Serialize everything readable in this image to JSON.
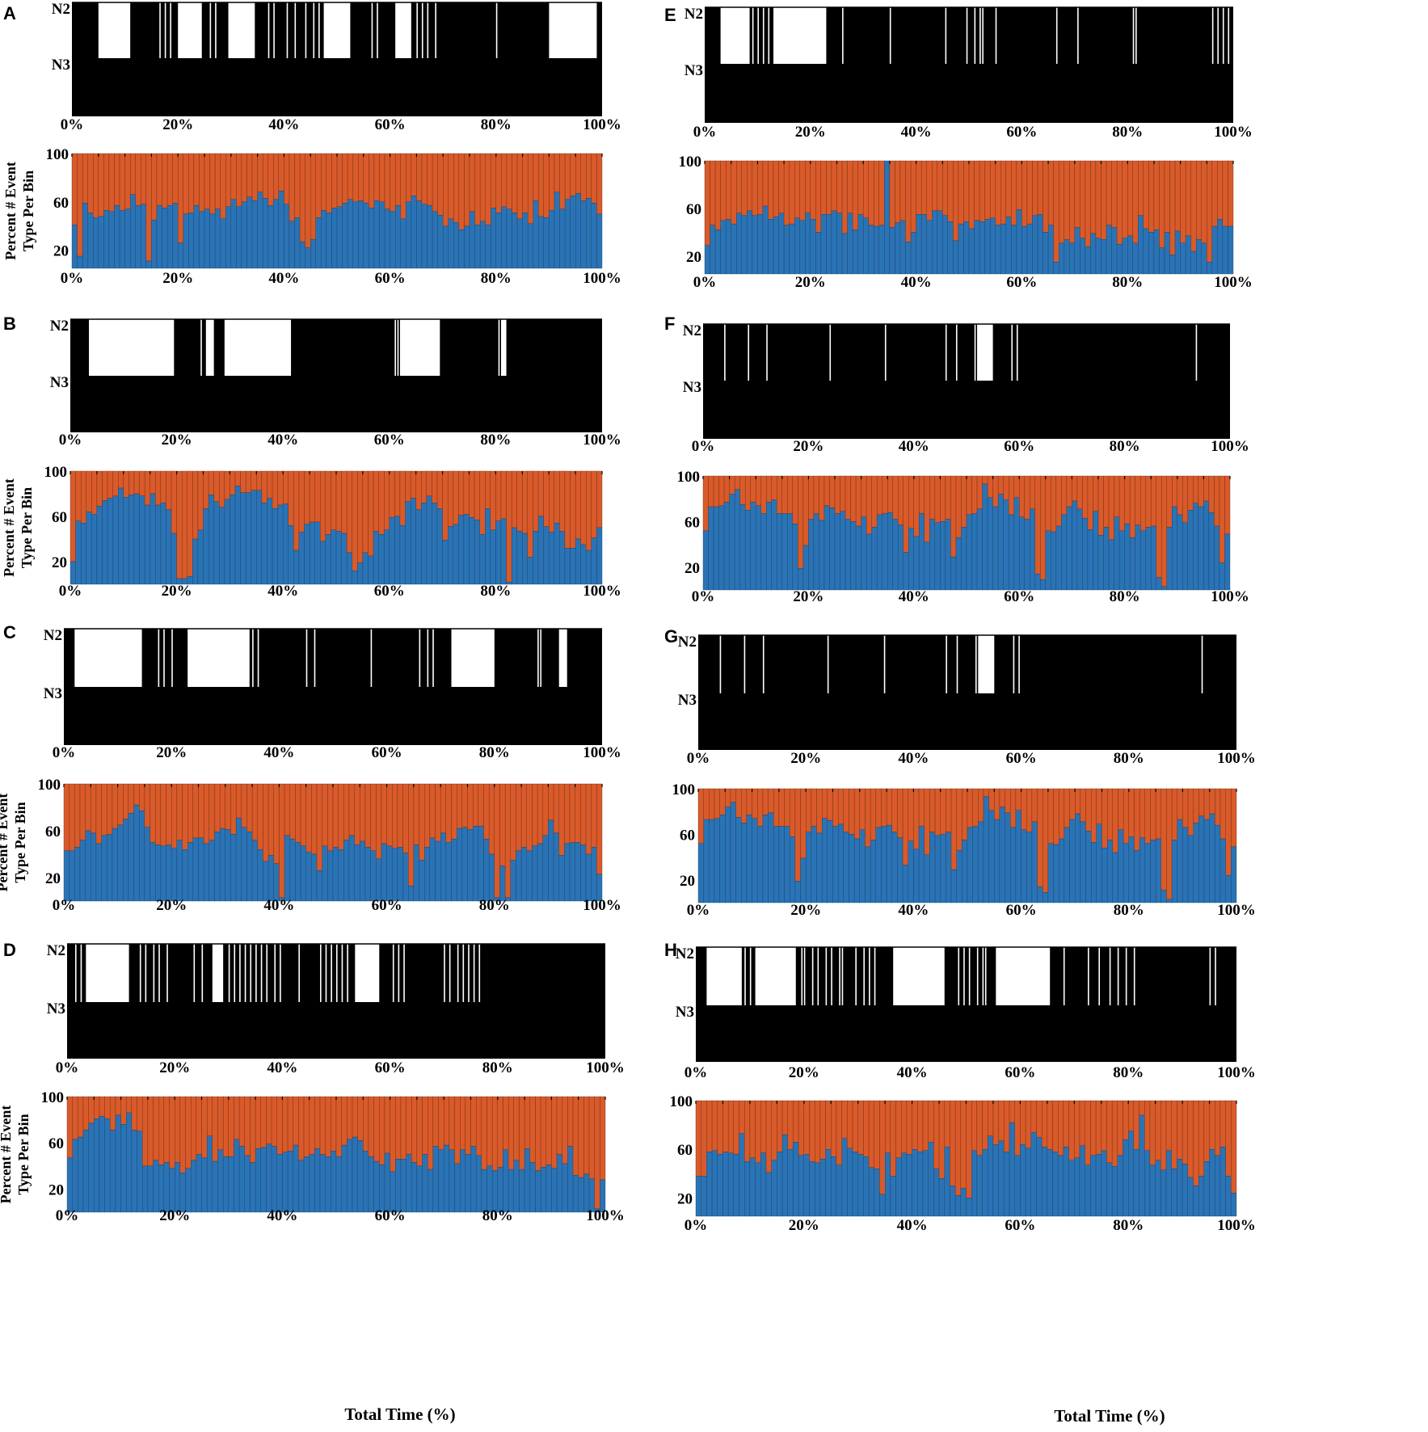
{
  "figure": {
    "x_axis_title": "Total Time (%)",
    "stage_labels": [
      "N2",
      "N3"
    ],
    "ratio_y_label": [
      "Percent # Event",
      "Type Per Bin"
    ],
    "x_tick_labels": [
      "0%",
      "20%",
      "40%",
      "60%",
      "80%",
      "100%"
    ],
    "ratio_tick_labels": [
      "20",
      "60",
      "100"
    ],
    "colors": {
      "hypnogram": "#000000",
      "lower_series": "#2a73b5",
      "upper_series": "#d95a2a"
    }
  },
  "chart_data": [
    {
      "panel": "A",
      "type": "hypnogram",
      "xlim": [
        0,
        100
      ],
      "levels": [
        "N2",
        "N3"
      ],
      "n3_intervals": [
        [
          5,
          11
        ],
        [
          20,
          24.5
        ],
        [
          29.5,
          34.5
        ],
        [
          47.5,
          52.5
        ],
        [
          61,
          64
        ],
        [
          90,
          99
        ]
      ],
      "n3_lines": [
        16.5,
        17.5,
        18.5,
        26,
        27,
        37,
        38,
        40.5,
        42,
        44,
        45.5,
        46.5,
        56.5,
        57.5,
        65,
        66,
        67,
        68.5,
        80
      ],
      "ratio": {
        "type": "bar",
        "stacked": true,
        "xlim": [
          0,
          100
        ],
        "ylim": [
          5,
          100
        ],
        "ticks": [
          20,
          60,
          100
        ],
        "lower_series_values": [
          41,
          15,
          59,
          51,
          47,
          48,
          53,
          52,
          57,
          53,
          54,
          66,
          57,
          58,
          11,
          45,
          57,
          55,
          57,
          59,
          26,
          50,
          51,
          57,
          52,
          54,
          50,
          54,
          46,
          56,
          62,
          56,
          60,
          64,
          61,
          68,
          63,
          57,
          62,
          69,
          58,
          44,
          47,
          27,
          22,
          29,
          47,
          53,
          51,
          55,
          56,
          59,
          62,
          60,
          61,
          59,
          55,
          61,
          60,
          54,
          52,
          57,
          46,
          60,
          65,
          61,
          58,
          57,
          52,
          49,
          40,
          46,
          43,
          37,
          40,
          52,
          41,
          44,
          41,
          55,
          51,
          56,
          54,
          51,
          46,
          51,
          42,
          61,
          48,
          47,
          53,
          68,
          54,
          62,
          65,
          67,
          61,
          63,
          59,
          50
        ]
      }
    },
    {
      "panel": "B",
      "type": "hypnogram",
      "xlim": [
        0,
        100
      ],
      "levels": [
        "N2",
        "N3"
      ],
      "n3_intervals": [
        [
          3.5,
          19.5
        ],
        [
          25.5,
          27
        ],
        [
          29,
          41.5
        ],
        [
          62,
          69.5
        ],
        [
          81,
          82
        ]
      ],
      "n3_lines": [
        24.5,
        61,
        61.5,
        80.5
      ],
      "ratio": {
        "type": "bar",
        "stacked": true,
        "xlim": [
          0,
          100
        ],
        "ylim": [
          0,
          100
        ],
        "ticks": [
          20,
          60,
          100
        ],
        "lower_series_values": [
          20,
          56,
          54,
          64,
          62,
          69,
          74,
          76,
          78,
          85,
          77,
          79,
          80,
          78,
          70,
          80,
          70,
          72,
          66,
          45,
          5,
          5,
          7,
          40,
          48,
          67,
          79,
          73,
          68,
          75,
          79,
          87,
          81,
          81,
          83,
          83,
          72,
          76,
          67,
          70,
          71,
          52,
          30,
          46,
          53,
          55,
          55,
          38,
          44,
          48,
          47,
          45,
          28,
          12,
          19,
          28,
          25,
          47,
          44,
          48,
          59,
          60,
          52,
          73,
          76,
          66,
          72,
          78,
          72,
          67,
          39,
          51,
          53,
          61,
          62,
          59,
          57,
          44,
          67,
          48,
          56,
          58,
          2,
          50,
          47,
          45,
          24,
          47,
          60,
          51,
          46,
          54,
          47,
          32,
          32,
          40,
          35,
          30,
          41,
          50
        ]
      }
    },
    {
      "panel": "C",
      "type": "hypnogram",
      "xlim": [
        0,
        100
      ],
      "levels": [
        "N2",
        "N3"
      ],
      "n3_intervals": [
        [
          2,
          14.5
        ],
        [
          23,
          34.5
        ],
        [
          72,
          80
        ],
        [
          92,
          93.5
        ]
      ],
      "n3_lines": [
        17.5,
        18.5,
        20,
        35,
        36,
        45,
        46.5,
        57,
        66,
        67.5,
        68.5,
        88,
        88.5
      ],
      "ratio": {
        "type": "bar",
        "stacked": true,
        "xlim": [
          0,
          100
        ],
        "ylim": [
          0,
          100
        ],
        "ticks": [
          20,
          60,
          100
        ],
        "lower_series_values": [
          43,
          43,
          46,
          52,
          60,
          58,
          49,
          56,
          57,
          62,
          65,
          70,
          75,
          82,
          77,
          63,
          50,
          48,
          47,
          48,
          45,
          52,
          44,
          50,
          54,
          54,
          49,
          52,
          59,
          62,
          61,
          57,
          71,
          63,
          59,
          52,
          44,
          34,
          39,
          32,
          3,
          56,
          53,
          50,
          47,
          42,
          40,
          26,
          47,
          43,
          46,
          44,
          52,
          56,
          48,
          51,
          46,
          43,
          36,
          49,
          47,
          45,
          46,
          41,
          13,
          48,
          35,
          46,
          54,
          51,
          58,
          50,
          53,
          62,
          63,
          61,
          64,
          64,
          53,
          40,
          3,
          30,
          3,
          35,
          43,
          46,
          43,
          47,
          49,
          56,
          69,
          58,
          39,
          49,
          50,
          50,
          48,
          40,
          46,
          23
        ]
      }
    },
    {
      "panel": "D",
      "type": "hypnogram",
      "xlim": [
        0,
        100
      ],
      "levels": [
        "N2",
        "N3"
      ],
      "n3_intervals": [
        [
          3.5,
          11.5
        ],
        [
          27,
          29
        ],
        [
          53.5,
          58
        ]
      ],
      "n3_lines": [
        1.5,
        2.5,
        13.5,
        14.5,
        16,
        17,
        18.5,
        23.5,
        25,
        30,
        31,
        32,
        33,
        34,
        35,
        36,
        37,
        38.5,
        39.5,
        43,
        47,
        48,
        49,
        50,
        51,
        52,
        60.5,
        61.5,
        62.5,
        70,
        71,
        72.5,
        73.5,
        74.5,
        75.5,
        76.5
      ],
      "ratio": {
        "type": "bar",
        "stacked": true,
        "xlim": [
          0,
          100
        ],
        "ylim": [
          0,
          100
        ],
        "ticks": [
          20,
          60,
          100
        ],
        "lower_series_values": [
          47,
          63,
          65,
          71,
          77,
          81,
          83,
          81,
          71,
          84,
          76,
          86,
          71,
          70,
          40,
          40,
          45,
          41,
          43,
          38,
          43,
          34,
          38,
          45,
          50,
          47,
          66,
          44,
          54,
          48,
          48,
          63,
          57,
          49,
          43,
          55,
          56,
          59,
          57,
          50,
          52,
          53,
          58,
          45,
          48,
          50,
          55,
          50,
          48,
          53,
          48,
          58,
          63,
          65,
          62,
          53,
          48,
          44,
          41,
          51,
          35,
          46,
          46,
          50,
          43,
          40,
          50,
          37,
          57,
          54,
          58,
          54,
          42,
          54,
          50,
          57,
          49,
          37,
          40,
          36,
          39,
          54,
          37,
          45,
          37,
          55,
          43,
          36,
          39,
          41,
          38,
          50,
          42,
          57,
          32,
          30,
          33,
          29,
          3,
          28
        ]
      }
    },
    {
      "panel": "E",
      "type": "hypnogram",
      "xlim": [
        0,
        100
      ],
      "levels": [
        "N2",
        "N3"
      ],
      "n3_intervals": [
        [
          3,
          8.5
        ],
        [
          13,
          23
        ]
      ],
      "n3_lines": [
        9,
        10,
        11,
        12,
        26,
        35,
        45.5,
        49.5,
        51,
        52,
        52.5,
        55,
        66.5,
        70.5,
        81,
        81.5,
        96,
        97,
        98,
        99
      ],
      "ratio": {
        "type": "bar",
        "stacked": true,
        "xlim": [
          0,
          100
        ],
        "ylim": [
          5,
          100
        ],
        "ticks": [
          20,
          60,
          100
        ],
        "lower_series_values": [
          29,
          46,
          42,
          50,
          51,
          47,
          56,
          54,
          58,
          54,
          55,
          62,
          51,
          53,
          56,
          46,
          47,
          52,
          50,
          56,
          51,
          40,
          55,
          55,
          58,
          56,
          39,
          56,
          42,
          55,
          52,
          46,
          45,
          46,
          100,
          44,
          48,
          50,
          32,
          40,
          55,
          55,
          50,
          58,
          58,
          54,
          49,
          33,
          47,
          49,
          43,
          50,
          49,
          51,
          52,
          46,
          47,
          53,
          46,
          59,
          45,
          47,
          54,
          55,
          40,
          46,
          15,
          31,
          34,
          31,
          44,
          35,
          28,
          39,
          35,
          34,
          46,
          44,
          30,
          35,
          37,
          31,
          54,
          43,
          40,
          42,
          27,
          40,
          21,
          41,
          31,
          37,
          24,
          34,
          31,
          15,
          45,
          51,
          45,
          45
        ]
      }
    },
    {
      "panel": "F",
      "type": "hypnogram",
      "xlim": [
        0,
        100
      ],
      "levels": [
        "N2",
        "N3"
      ],
      "n3_intervals": [
        [
          52,
          55
        ]
      ],
      "n3_lines": [
        4,
        8.5,
        12,
        24,
        34.5,
        46,
        48,
        51.5,
        58.5,
        59.5,
        93.5
      ],
      "ratio": {
        "type": "bar",
        "stacked": true,
        "xlim": [
          0,
          100
        ],
        "ylim": [
          0,
          100
        ],
        "ticks": [
          20,
          60,
          100
        ],
        "lower_series_values": [
          52,
          73,
          73,
          74,
          77,
          84,
          88,
          75,
          70,
          77,
          74,
          67,
          77,
          79,
          67,
          67,
          67,
          58,
          19,
          39,
          62,
          67,
          61,
          74,
          72,
          67,
          69,
          62,
          60,
          56,
          64,
          49,
          55,
          66,
          67,
          68,
          62,
          57,
          33,
          54,
          47,
          67,
          42,
          62,
          59,
          60,
          62,
          29,
          46,
          55,
          66,
          67,
          71,
          93,
          81,
          73,
          84,
          79,
          66,
          81,
          64,
          62,
          71,
          14,
          9,
          52,
          51,
          56,
          66,
          73,
          78,
          71,
          63,
          53,
          69,
          48,
          55,
          44,
          64,
          52,
          58,
          46,
          57,
          52,
          55,
          56,
          11,
          3,
          55,
          73,
          66,
          59,
          70,
          76,
          73,
          78,
          68,
          56,
          24,
          49
        ]
      }
    },
    {
      "panel": "G",
      "type": "hypnogram",
      "xlim": [
        0,
        100
      ],
      "levels": [
        "N2",
        "N3"
      ],
      "n3_intervals": [
        [
          52,
          55
        ]
      ],
      "n3_lines": [
        4,
        8.5,
        12,
        24,
        34.5,
        46,
        48,
        51.5,
        58.5,
        59.5,
        93.5
      ],
      "ratio": {
        "type": "bar",
        "stacked": true,
        "xlim": [
          0,
          100
        ],
        "ylim": [
          0,
          100
        ],
        "ticks": [
          20,
          60,
          100
        ],
        "lower_series_values": [
          52,
          73,
          73,
          74,
          77,
          84,
          88,
          75,
          70,
          77,
          74,
          67,
          77,
          79,
          67,
          67,
          67,
          58,
          19,
          39,
          62,
          67,
          61,
          74,
          72,
          67,
          69,
          62,
          60,
          56,
          64,
          49,
          55,
          66,
          67,
          68,
          62,
          57,
          33,
          54,
          47,
          67,
          42,
          62,
          59,
          60,
          62,
          29,
          46,
          55,
          66,
          67,
          71,
          93,
          81,
          73,
          84,
          79,
          66,
          81,
          64,
          62,
          71,
          14,
          9,
          52,
          51,
          56,
          66,
          73,
          78,
          71,
          63,
          53,
          69,
          48,
          55,
          44,
          64,
          52,
          58,
          46,
          57,
          52,
          55,
          56,
          11,
          3,
          55,
          73,
          66,
          59,
          70,
          76,
          73,
          78,
          68,
          56,
          24,
          49
        ]
      }
    },
    {
      "panel": "H",
      "type": "hypnogram",
      "xlim": [
        0,
        100
      ],
      "levels": [
        "N2",
        "N3"
      ],
      "n3_intervals": [
        [
          2,
          8.5
        ],
        [
          11,
          18.5
        ],
        [
          36.5,
          46
        ],
        [
          55.5,
          65.5
        ]
      ],
      "n3_lines": [
        9,
        10,
        19.5,
        20,
        21.5,
        22.5,
        24,
        25,
        26.5,
        27,
        29.5,
        31,
        32,
        33,
        48.5,
        49.5,
        50.5,
        52,
        53,
        53.5,
        68,
        72.5,
        74.5,
        76.5,
        78,
        79.5,
        81,
        95,
        96
      ],
      "ratio": {
        "type": "bar",
        "stacked": true,
        "xlim": [
          0,
          100
        ],
        "ylim": [
          5,
          100
        ],
        "ticks": [
          20,
          60,
          100
        ],
        "lower_series_values": [
          38,
          38,
          58,
          59,
          56,
          58,
          57,
          56,
          73,
          50,
          53,
          49,
          57,
          41,
          51,
          58,
          72,
          60,
          66,
          55,
          56,
          50,
          49,
          52,
          60,
          54,
          47,
          69,
          61,
          58,
          56,
          54,
          45,
          44,
          23,
          57,
          38,
          53,
          57,
          56,
          60,
          58,
          59,
          66,
          44,
          36,
          62,
          30,
          22,
          28,
          20,
          59,
          55,
          60,
          71,
          64,
          67,
          58,
          82,
          55,
          64,
          61,
          74,
          70,
          62,
          60,
          58,
          55,
          62,
          51,
          53,
          63,
          47,
          55,
          56,
          59,
          49,
          46,
          55,
          68,
          75,
          60,
          88,
          59,
          47,
          51,
          43,
          59,
          44,
          52,
          48,
          37,
          30,
          38,
          50,
          60,
          55,
          62,
          38,
          24
        ]
      }
    }
  ]
}
